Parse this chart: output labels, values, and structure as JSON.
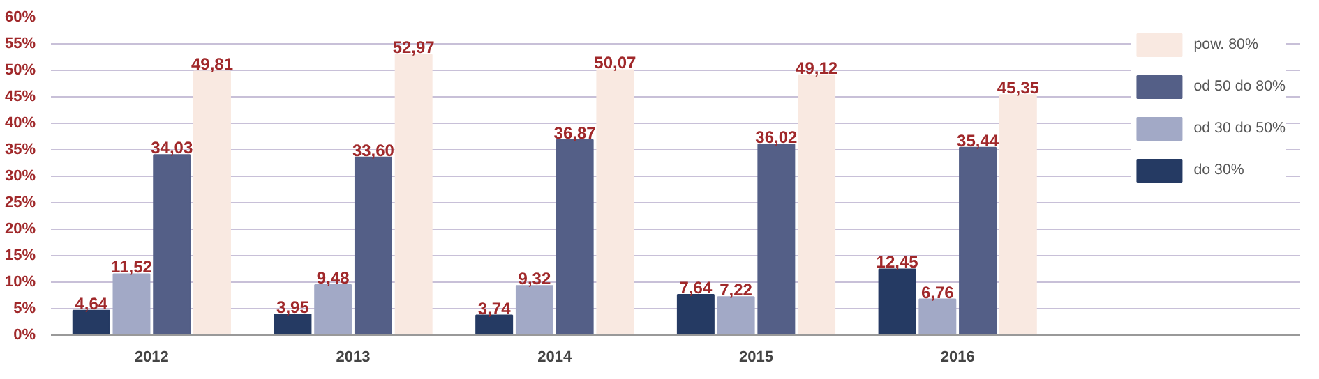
{
  "chart_data": {
    "type": "bar",
    "categories": [
      "2012",
      "2013",
      "2014",
      "2015",
      "2016"
    ],
    "series": [
      {
        "name": "do 30%",
        "color": "#253a63",
        "values": [
          4.64,
          3.95,
          3.74,
          7.64,
          12.45
        ],
        "value_labels": [
          "4,64",
          "3,95",
          "3,74",
          "7,64",
          "12,45"
        ]
      },
      {
        "name": "od 30 do 50%",
        "color": "#a2a9c6",
        "values": [
          11.52,
          9.48,
          9.32,
          7.22,
          6.76
        ],
        "value_labels": [
          "11,52",
          "9,48",
          "9,32",
          "7,22",
          "6,76"
        ]
      },
      {
        "name": "od 50 do 80%",
        "color": "#545f87",
        "values": [
          34.03,
          33.6,
          36.87,
          36.02,
          35.44
        ],
        "value_labels": [
          "34,03",
          "33,60",
          "36,87",
          "36,02",
          "35,44"
        ]
      },
      {
        "name": "pow. 80%",
        "color": "#f9e9e1",
        "values": [
          49.81,
          52.97,
          50.07,
          49.12,
          45.35
        ],
        "value_labels": [
          "49,81",
          "52,97",
          "50,07",
          "49,12",
          "45,35"
        ]
      }
    ],
    "ylim": [
      0,
      60
    ],
    "yticks": [
      {
        "value": 0,
        "label": "0%"
      },
      {
        "value": 5,
        "label": "5%"
      },
      {
        "value": 10,
        "label": "10%"
      },
      {
        "value": 15,
        "label": "15%"
      },
      {
        "value": 20,
        "label": "20%"
      },
      {
        "value": 25,
        "label": "25%"
      },
      {
        "value": 30,
        "label": "30%"
      },
      {
        "value": 35,
        "label": "35%"
      },
      {
        "value": 40,
        "label": "40%"
      },
      {
        "value": 45,
        "label": "45%"
      },
      {
        "value": 50,
        "label": "50%"
      },
      {
        "value": 55,
        "label": "55%"
      },
      {
        "value": 60,
        "label": "60%"
      }
    ],
    "grid": "y",
    "legend": "right"
  }
}
